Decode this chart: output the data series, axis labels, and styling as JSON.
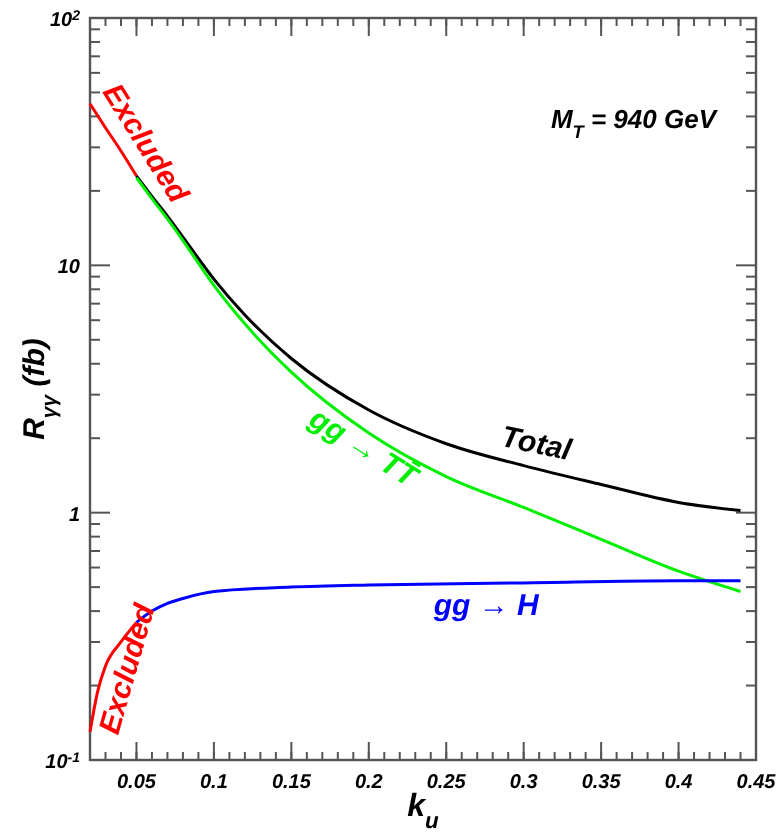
{
  "chart_data": {
    "type": "line",
    "xlabel": "k$_{u}$",
    "ylabel": "R$_{γγ}$ (fb)",
    "log": "y",
    "xlim": [
      0.02,
      0.45
    ],
    "ylim": [
      0.1,
      100
    ],
    "xticks": [
      0.05,
      0.1,
      0.15,
      0.2,
      0.25,
      0.3,
      0.35,
      0.4,
      0.45
    ],
    "yticks": [
      {
        "value": 0.1,
        "label": "10$^{-1}$"
      },
      1,
      10,
      {
        "value": 100,
        "label": "10$^{2}$"
      }
    ],
    "grid": false,
    "marker": "none",
    "line_style": "solid",
    "annotations": [
      "M$_{T}$ = 940 GeV"
    ],
    "series": [
      {
        "name": "Excluded",
        "color": "#ff0000",
        "x": [
          0.02,
          0.03,
          0.04,
          0.05
        ],
        "values": [
          45,
          36,
          29,
          23
        ]
      },
      {
        "name": "Total",
        "color": "#000000",
        "x": [
          0.05,
          0.06,
          0.07,
          0.08,
          0.1,
          0.12,
          0.15,
          0.2,
          0.25,
          0.3,
          0.35,
          0.4,
          0.44
        ],
        "values": [
          23,
          19.0,
          15.8,
          13.0,
          8.8,
          6.3,
          4.2,
          2.6,
          1.9,
          1.55,
          1.3,
          1.1,
          1.02
        ]
      },
      {
        "name": "gg → TT̄",
        "color": "#00ee00",
        "x": [
          0.05,
          0.06,
          0.07,
          0.08,
          0.1,
          0.12,
          0.15,
          0.2,
          0.25,
          0.3,
          0.35,
          0.4,
          0.44
        ],
        "values": [
          22.6,
          18.6,
          15.4,
          12.6,
          8.3,
          5.8,
          3.7,
          2.1,
          1.4,
          1.05,
          0.78,
          0.58,
          0.48
        ]
      },
      {
        "name": "gg → H",
        "color": "#0000ff",
        "x": [
          0.05,
          0.06,
          0.07,
          0.08,
          0.1,
          0.15,
          0.2,
          0.3,
          0.4,
          0.44
        ],
        "values": [
          0.36,
          0.4,
          0.43,
          0.45,
          0.48,
          0.5,
          0.51,
          0.52,
          0.53,
          0.53
        ]
      },
      {
        "name": "Excluded",
        "color": "#ff0000",
        "x": [
          0.02,
          0.025,
          0.03,
          0.04,
          0.05
        ],
        "values": [
          0.13,
          0.19,
          0.24,
          0.3,
          0.36
        ]
      }
    ]
  }
}
